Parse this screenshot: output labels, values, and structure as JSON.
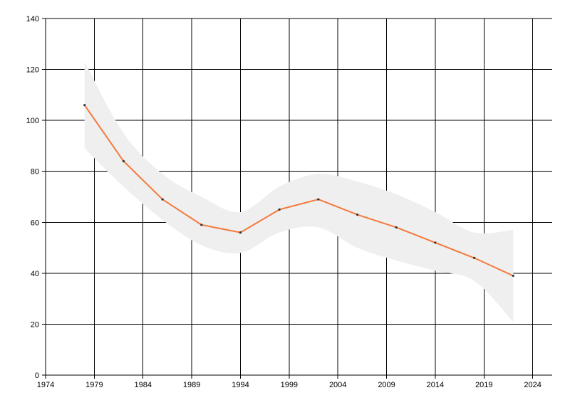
{
  "chart_data": {
    "type": "line",
    "title": "",
    "xlabel": "",
    "ylabel": "",
    "xlim": [
      1974,
      2026
    ],
    "ylim": [
      0,
      140
    ],
    "x_ticks": [
      1974,
      1979,
      1984,
      1989,
      1994,
      1999,
      2004,
      2009,
      2014,
      2019,
      2024
    ],
    "y_ticks": [
      0,
      20,
      40,
      60,
      80,
      100,
      120,
      140
    ],
    "grid": true,
    "series": [
      {
        "x": [
          1978,
          1982,
          1986,
          1990,
          1994,
          1998,
          2002,
          2006,
          2010,
          2014,
          2018,
          2022
        ],
        "y": [
          106,
          84,
          69,
          59,
          56,
          65,
          69,
          63,
          58,
          52,
          46,
          39
        ],
        "color": "#f47a3c"
      }
    ],
    "band": {
      "x": [
        1978,
        1982,
        1986,
        1990,
        1994,
        1998,
        2002,
        2006,
        2010,
        2014,
        2018,
        2022
      ],
      "upper": [
        123,
        95,
        79,
        70,
        64,
        74,
        79,
        76,
        71,
        64,
        56,
        57
      ],
      "lower": [
        89,
        74,
        61,
        51,
        48,
        56,
        58,
        50,
        45,
        41,
        37,
        21
      ],
      "color": "#efefef"
    }
  }
}
